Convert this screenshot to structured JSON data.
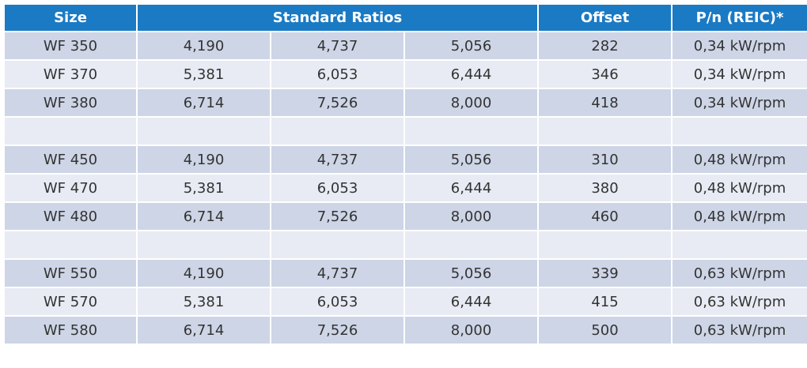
{
  "header": {
    "size": "Size",
    "standard_ratios": "Standard Ratios",
    "offset": "Offset",
    "power": "P/n (REIC)*"
  },
  "rows": [
    {
      "size": "WF 350",
      "r1": "4,190",
      "r2": "4,737",
      "r3": "5,056",
      "offset": "282",
      "power": "0,34 kW/rpm"
    },
    {
      "size": "WF 370",
      "r1": "5,381",
      "r2": "6,053",
      "r3": "6,444",
      "offset": "346",
      "power": "0,34 kW/rpm"
    },
    {
      "size": "WF 380",
      "r1": "6,714",
      "r2": "7,526",
      "r3": "8,000",
      "offset": "418",
      "power": "0,34 kW/rpm"
    },
    {
      "size": "",
      "r1": "",
      "r2": "",
      "r3": "",
      "offset": "",
      "power": ""
    },
    {
      "size": "WF 450",
      "r1": "4,190",
      "r2": "4,737",
      "r3": "5,056",
      "offset": "310",
      "power": "0,48 kW/rpm"
    },
    {
      "size": "WF 470",
      "r1": "5,381",
      "r2": "6,053",
      "r3": "6,444",
      "offset": "380",
      "power": "0,48 kW/rpm"
    },
    {
      "size": "WF 480",
      "r1": "6,714",
      "r2": "7,526",
      "r3": "8,000",
      "offset": "460",
      "power": "0,48 kW/rpm"
    },
    {
      "size": "",
      "r1": "",
      "r2": "",
      "r3": "",
      "offset": "",
      "power": ""
    },
    {
      "size": "WF 550",
      "r1": "4,190",
      "r2": "4,737",
      "r3": "5,056",
      "offset": "339",
      "power": "0,63 kW/rpm"
    },
    {
      "size": "WF 570",
      "r1": "5,381",
      "r2": "6,053",
      "r3": "6,444",
      "offset": "415",
      "power": "0,63 kW/rpm"
    },
    {
      "size": "WF 580",
      "r1": "6,714",
      "r2": "7,526",
      "r3": "8,000",
      "offset": "500",
      "power": "0,63 kW/rpm"
    }
  ],
  "colors": {
    "header_bg": "#1a7ac4",
    "row_dark": "#cdd5e6",
    "row_light": "#e8ebf4"
  }
}
